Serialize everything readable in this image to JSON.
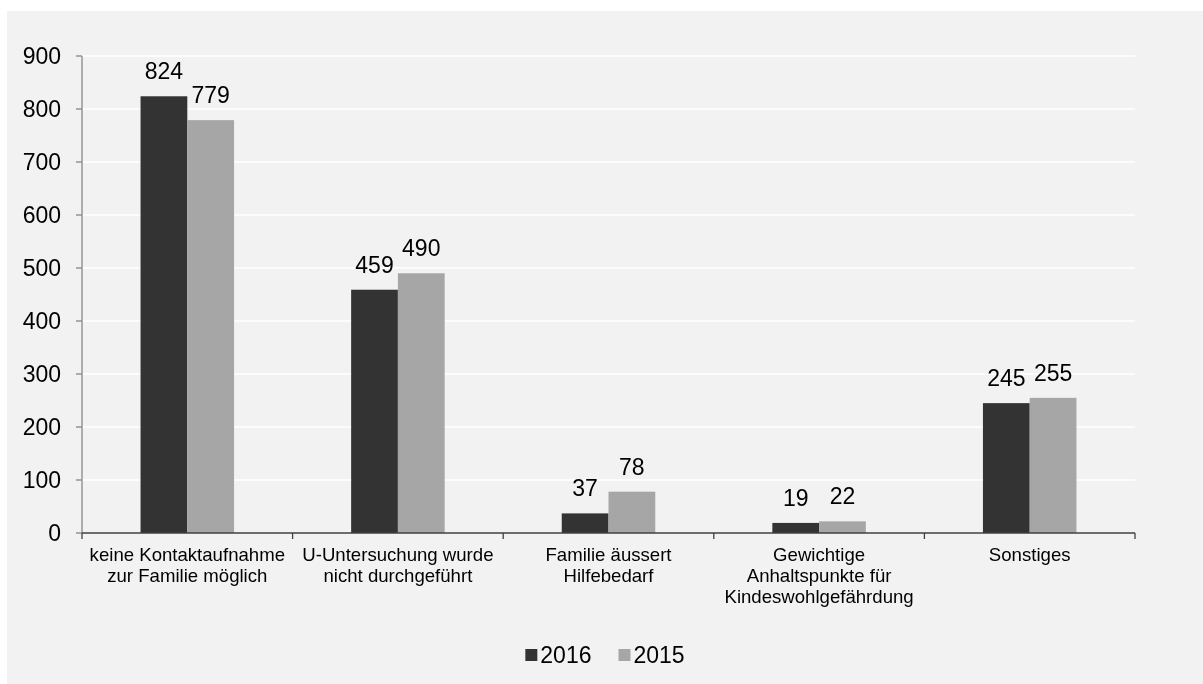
{
  "chart_data": {
    "type": "bar",
    "categories": [
      "keine Kontaktaufnahme zur Familie möglich",
      "U-Untersuchung wurde nicht durchgeführt",
      "Familie äussert Hilfebedarf",
      "Gewichtige Anhaltspunkte für Kindeswohlgefährdung",
      "Sonstiges"
    ],
    "series": [
      {
        "name": "2016",
        "color": "#333333",
        "values": [
          824,
          459,
          37,
          19,
          245
        ]
      },
      {
        "name": "2015",
        "color": "#a6a6a6",
        "values": [
          779,
          490,
          78,
          22,
          255
        ]
      }
    ],
    "ylim": [
      0,
      900
    ],
    "yticks": [
      0,
      100,
      200,
      300,
      400,
      500,
      600,
      700,
      800,
      900
    ],
    "grid": "y",
    "legend": "bottom",
    "data_labels": true
  }
}
